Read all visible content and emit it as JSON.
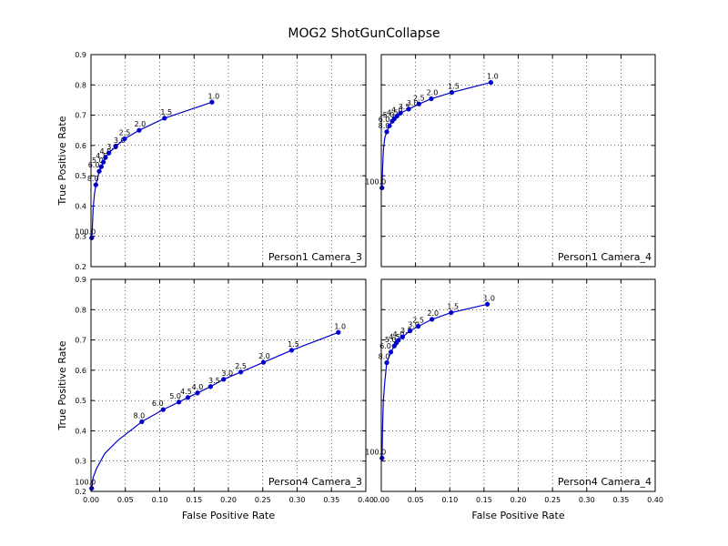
{
  "figure": {
    "title": "MOG2 ShotGunCollapse",
    "xlabel": "False Positive Rate",
    "ylabel": "True Positive Rate"
  },
  "chart_data": [
    {
      "type": "line",
      "title": "",
      "panel_label": "Person1 Camera_3",
      "xlabel": "",
      "ylabel": "True Positive Rate",
      "xlim": [
        0,
        0.4
      ],
      "ylim": [
        0.2,
        0.9
      ],
      "xticks": [
        0.0,
        0.05,
        0.1,
        0.15,
        0.2,
        0.25,
        0.3,
        0.35,
        0.4
      ],
      "yticks": [
        0.2,
        0.3,
        0.4,
        0.5,
        0.6,
        0.7,
        0.8,
        0.9
      ],
      "show_xtick_labels": false,
      "show_ytick_labels": true,
      "grid": true,
      "curve": [
        [
          0.001,
          0.295
        ],
        [
          0.002,
          0.33
        ],
        [
          0.003,
          0.39
        ],
        [
          0.005,
          0.44
        ],
        [
          0.007,
          0.47
        ]
      ],
      "points": [
        {
          "label": "100.0",
          "x": 0.001,
          "y": 0.295
        },
        {
          "label": "8.0",
          "x": 0.007,
          "y": 0.47
        },
        {
          "label": "6.0",
          "x": 0.012,
          "y": 0.515
        },
        {
          "label": "5.0",
          "x": 0.015,
          "y": 0.53
        },
        {
          "label": "4.5",
          "x": 0.018,
          "y": 0.545
        },
        {
          "label": "4.0",
          "x": 0.021,
          "y": 0.56
        },
        {
          "label": "3.5",
          "x": 0.026,
          "y": 0.575
        },
        {
          "label": "3.0",
          "x": 0.036,
          "y": 0.597
        },
        {
          "label": "2.5",
          "x": 0.049,
          "y": 0.622
        },
        {
          "label": "2.0",
          "x": 0.07,
          "y": 0.65
        },
        {
          "label": "1.5",
          "x": 0.107,
          "y": 0.69
        },
        {
          "label": "1.0",
          "x": 0.176,
          "y": 0.743
        }
      ]
    },
    {
      "type": "line",
      "title": "",
      "panel_label": "Person1 Camera_4",
      "xlabel": "",
      "ylabel": "",
      "xlim": [
        0,
        0.4
      ],
      "ylim": [
        0.2,
        0.9
      ],
      "xticks": [
        0.0,
        0.05,
        0.1,
        0.15,
        0.2,
        0.25,
        0.3,
        0.35,
        0.4
      ],
      "yticks": [
        0.2,
        0.3,
        0.4,
        0.5,
        0.6,
        0.7,
        0.8,
        0.9
      ],
      "show_xtick_labels": false,
      "show_ytick_labels": false,
      "grid": true,
      "curve": [
        [
          0.001,
          0.46
        ],
        [
          0.002,
          0.53
        ],
        [
          0.003,
          0.585
        ],
        [
          0.005,
          0.625
        ],
        [
          0.008,
          0.645
        ]
      ],
      "points": [
        {
          "label": "100.0",
          "x": 0.001,
          "y": 0.46
        },
        {
          "label": "8.0",
          "x": 0.008,
          "y": 0.645
        },
        {
          "label": "6.0",
          "x": 0.012,
          "y": 0.665
        },
        {
          "label": "5.0",
          "x": 0.016,
          "y": 0.68
        },
        {
          "label": "4.5",
          "x": 0.019,
          "y": 0.688
        },
        {
          "label": "4.0",
          "x": 0.023,
          "y": 0.697
        },
        {
          "label": "3.5",
          "x": 0.028,
          "y": 0.707
        },
        {
          "label": "3.0",
          "x": 0.04,
          "y": 0.72
        },
        {
          "label": "2.5",
          "x": 0.055,
          "y": 0.737
        },
        {
          "label": "2.0",
          "x": 0.073,
          "y": 0.754
        },
        {
          "label": "1.5",
          "x": 0.103,
          "y": 0.775
        },
        {
          "label": "1.0",
          "x": 0.16,
          "y": 0.808
        }
      ]
    },
    {
      "type": "line",
      "title": "",
      "panel_label": "Person4 Camera_3",
      "xlabel": "False Positive Rate",
      "ylabel": "True Positive Rate",
      "xlim": [
        0,
        0.4
      ],
      "ylim": [
        0.2,
        0.9
      ],
      "xticks": [
        0.0,
        0.05,
        0.1,
        0.15,
        0.2,
        0.25,
        0.3,
        0.35,
        0.4
      ],
      "yticks": [
        0.2,
        0.3,
        0.4,
        0.5,
        0.6,
        0.7,
        0.8,
        0.9
      ],
      "show_xtick_labels": true,
      "show_ytick_labels": true,
      "grid": true,
      "curve": [
        [
          0.001,
          0.21
        ],
        [
          0.003,
          0.245
        ],
        [
          0.008,
          0.275
        ],
        [
          0.02,
          0.325
        ],
        [
          0.04,
          0.37
        ],
        [
          0.074,
          0.43
        ]
      ],
      "points": [
        {
          "label": "100.0",
          "x": 0.001,
          "y": 0.21
        },
        {
          "label": "8.0",
          "x": 0.074,
          "y": 0.43
        },
        {
          "label": "6.0",
          "x": 0.105,
          "y": 0.47
        },
        {
          "label": "5.0",
          "x": 0.128,
          "y": 0.495
        },
        {
          "label": "4.5",
          "x": 0.141,
          "y": 0.51
        },
        {
          "label": "4.0",
          "x": 0.155,
          "y": 0.525
        },
        {
          "label": "3.5",
          "x": 0.174,
          "y": 0.546
        },
        {
          "label": "3.0",
          "x": 0.193,
          "y": 0.57
        },
        {
          "label": "2.5",
          "x": 0.218,
          "y": 0.594
        },
        {
          "label": "2.0",
          "x": 0.251,
          "y": 0.626
        },
        {
          "label": "1.5",
          "x": 0.292,
          "y": 0.666
        },
        {
          "label": "1.0",
          "x": 0.36,
          "y": 0.725
        }
      ]
    },
    {
      "type": "line",
      "title": "",
      "panel_label": "Person4 Camera_4",
      "xlabel": "False Positive Rate",
      "ylabel": "",
      "xlim": [
        0,
        0.4
      ],
      "ylim": [
        0.2,
        0.9
      ],
      "xticks": [
        0.0,
        0.05,
        0.1,
        0.15,
        0.2,
        0.25,
        0.3,
        0.35,
        0.4
      ],
      "yticks": [
        0.2,
        0.3,
        0.4,
        0.5,
        0.6,
        0.7,
        0.8,
        0.9
      ],
      "show_xtick_labels": true,
      "show_ytick_labels": false,
      "grid": true,
      "curve": [
        [
          0.001,
          0.31
        ],
        [
          0.002,
          0.42
        ],
        [
          0.003,
          0.5
        ],
        [
          0.005,
          0.56
        ],
        [
          0.008,
          0.625
        ]
      ],
      "points": [
        {
          "label": "100.0",
          "x": 0.001,
          "y": 0.31
        },
        {
          "label": "8.0",
          "x": 0.008,
          "y": 0.625
        },
        {
          "label": "6.0",
          "x": 0.014,
          "y": 0.66
        },
        {
          "label": "5.0",
          "x": 0.019,
          "y": 0.68
        },
        {
          "label": "4.5",
          "x": 0.022,
          "y": 0.69
        },
        {
          "label": "4.0",
          "x": 0.025,
          "y": 0.699
        },
        {
          "label": "3.5",
          "x": 0.031,
          "y": 0.71
        },
        {
          "label": "3.0",
          "x": 0.042,
          "y": 0.73
        },
        {
          "label": "2.5",
          "x": 0.054,
          "y": 0.745
        },
        {
          "label": "2.0",
          "x": 0.074,
          "y": 0.768
        },
        {
          "label": "1.5",
          "x": 0.102,
          "y": 0.79
        },
        {
          "label": "1.0",
          "x": 0.155,
          "y": 0.818
        }
      ]
    }
  ]
}
